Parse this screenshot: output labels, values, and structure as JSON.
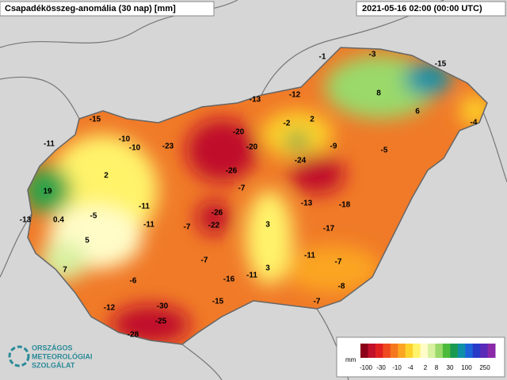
{
  "header": {
    "title": "Csapadékösszeg-anomália (30 nap) [mm]",
    "timestamp": "2021-05-16 02:00 (00:00 UTC)"
  },
  "stations": [
    -15,
    -11,
    -10,
    -10,
    -23,
    -20,
    -20,
    -26,
    -13,
    -12,
    -1,
    -3,
    -15,
    8,
    6,
    -4,
    -2,
    2,
    -9,
    -5,
    -24,
    2,
    19,
    -7,
    -13,
    -18,
    -13,
    0.4,
    -5,
    -11,
    -11,
    -7,
    -26,
    -22,
    3,
    -17,
    5,
    7,
    -7,
    -11,
    -7,
    3,
    -16,
    -11,
    -6,
    -8,
    -15,
    -7,
    -12,
    -30,
    -25,
    -28
  ],
  "legend": {
    "unit": "mm",
    "labels": [
      "-100",
      "-30",
      "-10",
      "-4",
      "2",
      "8",
      "30",
      "100",
      "250"
    ]
  },
  "logo": {
    "lines": [
      "ORSZÁGOS",
      "METEOROLÓGIAI",
      "SZOLGÁLAT"
    ]
  }
}
